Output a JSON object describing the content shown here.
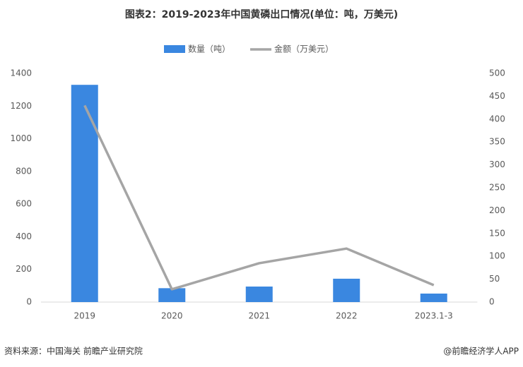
{
  "chart_data": {
    "type": "bar",
    "title": "图表2：2019-2023年中国黄磷出口情况(单位：吨，万美元)",
    "categories": [
      "2019",
      "2020",
      "2021",
      "2022",
      "2023.1-3"
    ],
    "series": [
      {
        "name": "数量（吨）",
        "type": "bar",
        "color": "#3a87e0",
        "values": [
          1330,
          85,
          95,
          143,
          52
        ]
      },
      {
        "name": "金额（万美元）",
        "type": "line",
        "axis": "y2",
        "color": "#a5a5a5",
        "values": [
          430,
          28,
          85,
          117,
          37
        ]
      }
    ],
    "ylim": [
      0,
      1400
    ],
    "yticks": [
      0,
      200,
      400,
      600,
      800,
      1000,
      1200,
      1400
    ],
    "y2lim": [
      0,
      500
    ],
    "y2ticks": [
      0,
      50,
      100,
      150,
      200,
      250,
      300,
      350,
      400,
      450,
      500
    ],
    "grid": false,
    "legend": "top",
    "source": "资料来源：中国海关 前瞻产业研究院",
    "credit": "@前瞻经济学人APP"
  }
}
